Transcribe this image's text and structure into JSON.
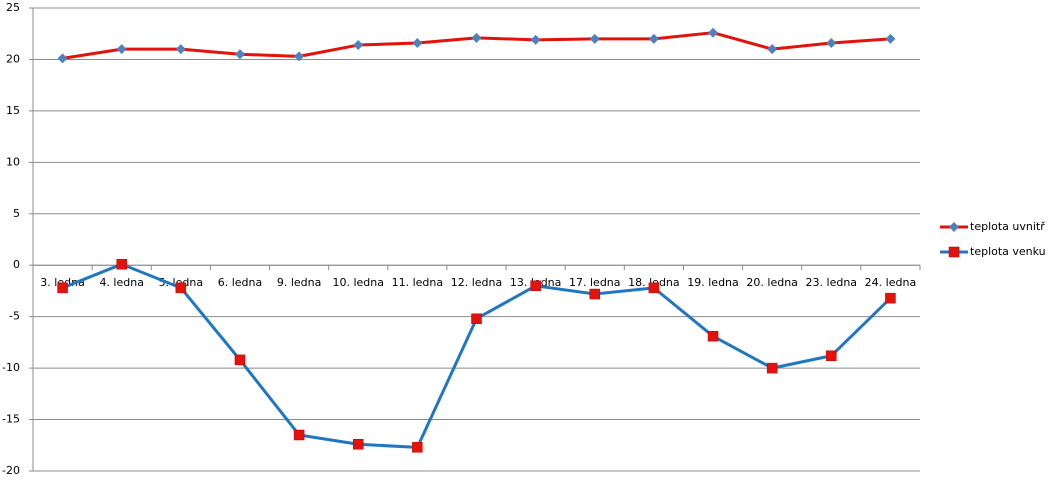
{
  "chart_data": {
    "type": "line",
    "categories": [
      "3. ledna",
      "4. ledna",
      "5. ledna",
      "6. ledna",
      "9. ledna",
      "10. ledna",
      "11. ledna",
      "12. ledna",
      "13. ledna",
      "17. ledna",
      "18. ledna",
      "19. ledna",
      "20. ledna",
      "23. ledna",
      "24. ledna"
    ],
    "series": [
      {
        "name": "teplota uvnitř",
        "color": "#e3120b",
        "marker": "diamond",
        "marker_color": "#4f81bd",
        "values": [
          20.1,
          21.0,
          21.0,
          20.5,
          20.3,
          21.4,
          21.6,
          22.1,
          21.9,
          22.0,
          22.0,
          22.6,
          21.0,
          21.6,
          22.0
        ]
      },
      {
        "name": "teplota venku",
        "color": "#1f77c0",
        "marker": "square",
        "marker_color": "#e3120b",
        "values": [
          -2.2,
          0.1,
          -2.2,
          -9.2,
          -16.5,
          -17.4,
          -17.7,
          -5.2,
          -2.0,
          -2.8,
          -2.2,
          -6.9,
          -10.0,
          -8.8,
          -3.2
        ]
      }
    ],
    "ylim": [
      -20,
      25
    ],
    "yticks": [
      -20,
      -15,
      -10,
      -5,
      0,
      5,
      10,
      15,
      20,
      25
    ],
    "grid": true,
    "legend": "right"
  }
}
